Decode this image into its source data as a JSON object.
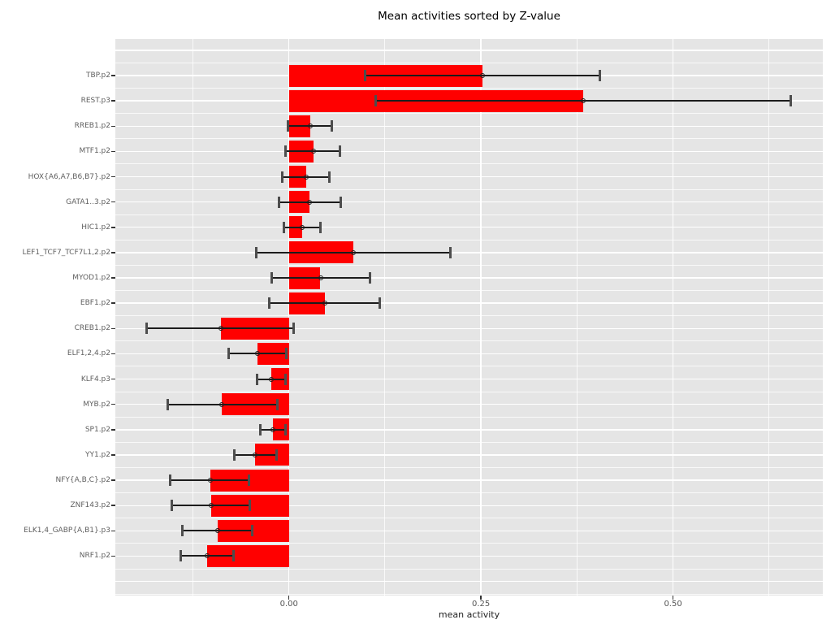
{
  "title": "Mean activities sorted by Z-value",
  "chart_data": {
    "type": "bar",
    "orientation": "horizontal",
    "title": "Mean activities sorted by Z-value",
    "xlabel": "mean activity",
    "ylabel": "",
    "xlim": [
      -0.226,
      0.695
    ],
    "grid": "on",
    "legend": "none",
    "colors": {
      "bar": "#FF0000",
      "panel_background": "#E5E5E5",
      "gridline": "#FFFFFF",
      "error_line": "#1C1C1C",
      "error_cap": "#4D4D4D",
      "tick_mark": "#333333",
      "tick_label": "#555555",
      "category_label": "#606060"
    },
    "x_ticks": [
      {
        "value": 0.0,
        "label": "0.00"
      },
      {
        "value": 0.25,
        "label": "0.25"
      },
      {
        "value": 0.5,
        "label": "0.50"
      }
    ],
    "x_minor_ticks": [
      -0.125,
      0.125,
      0.375,
      0.625
    ],
    "points": [
      {
        "label": "TBP.p2",
        "mean": 0.252,
        "err_low": 0.099,
        "err_high": 0.405
      },
      {
        "label": "REST.p3",
        "mean": 0.383,
        "err_low": 0.113,
        "err_high": 0.653
      },
      {
        "label": "RREB1.p2",
        "mean": 0.028,
        "err_low": -0.001,
        "err_high": 0.056
      },
      {
        "label": "MTF1.p2",
        "mean": 0.032,
        "err_low": -0.004,
        "err_high": 0.066
      },
      {
        "label": "HOX{A6,A7,B6,B7}.p2",
        "mean": 0.023,
        "err_low": -0.009,
        "err_high": 0.053
      },
      {
        "label": "GATA1..3.p2",
        "mean": 0.027,
        "err_low": -0.013,
        "err_high": 0.067
      },
      {
        "label": "HIC1.p2",
        "mean": 0.017,
        "err_low": -0.007,
        "err_high": 0.041
      },
      {
        "label": "LEF1_TCF7_TCF7L1,2.p2",
        "mean": 0.084,
        "err_low": -0.043,
        "err_high": 0.21
      },
      {
        "label": "MYOD1.p2",
        "mean": 0.041,
        "err_low": -0.022,
        "err_high": 0.106
      },
      {
        "label": "EBF1.p2",
        "mean": 0.047,
        "err_low": -0.026,
        "err_high": 0.118
      },
      {
        "label": "CREB1.p2",
        "mean": -0.089,
        "err_low": -0.185,
        "err_high": 0.006
      },
      {
        "label": "ELF1,2,4.p2",
        "mean": -0.041,
        "err_low": -0.078,
        "err_high": -0.003
      },
      {
        "label": "KLF4.p3",
        "mean": -0.023,
        "err_low": -0.041,
        "err_high": -0.004
      },
      {
        "label": "MYB.p2",
        "mean": -0.087,
        "err_low": -0.158,
        "err_high": -0.015
      },
      {
        "label": "SP1.p2",
        "mean": -0.021,
        "err_low": -0.037,
        "err_high": -0.005
      },
      {
        "label": "YY1.p2",
        "mean": -0.044,
        "err_low": -0.071,
        "err_high": -0.016
      },
      {
        "label": "NFY{A,B,C}.p2",
        "mean": -0.102,
        "err_low": -0.155,
        "err_high": -0.052
      },
      {
        "label": "ZNF143.p2",
        "mean": -0.101,
        "err_low": -0.153,
        "err_high": -0.051
      },
      {
        "label": "ELK1,4_GABP{A,B1}.p3",
        "mean": -0.093,
        "err_low": -0.139,
        "err_high": -0.048
      },
      {
        "label": "NRF1.p2",
        "mean": -0.107,
        "err_low": -0.141,
        "err_high": -0.072
      }
    ]
  }
}
